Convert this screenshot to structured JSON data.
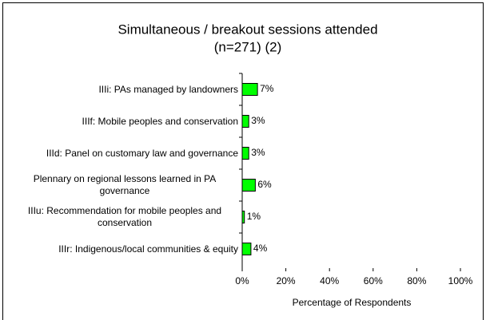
{
  "chart_data": {
    "type": "bar",
    "orientation": "horizontal",
    "title": "Simultaneous / breakout sessions attended",
    "subtitle": "(n=271) (2)",
    "categories": [
      "IIIi: PAs managed by landowners",
      "IIIf: Mobile peoples and conservation",
      "IIId: Panel on customary law and governance",
      "Plennary on regional lessons learned in PA governance",
      "IIIu: Recommendation for mobile peoples and conservation",
      "IIIr: Indigenous/local communities & equity"
    ],
    "values": [
      7,
      3,
      3,
      6,
      1,
      4
    ],
    "value_labels": [
      "7%",
      "3%",
      "3%",
      "6%",
      "1%",
      "4%"
    ],
    "color": "#00ff00",
    "xlim": [
      0,
      100
    ],
    "xticks": [
      {
        "value": 0,
        "label": "0%"
      },
      {
        "value": 20,
        "label": "20%"
      },
      {
        "value": 40,
        "label": "40%"
      },
      {
        "value": 60,
        "label": "60%"
      },
      {
        "value": 80,
        "label": "80%"
      },
      {
        "value": 100,
        "label": "100%"
      }
    ],
    "xlabel": "Percentage of Respondents"
  }
}
